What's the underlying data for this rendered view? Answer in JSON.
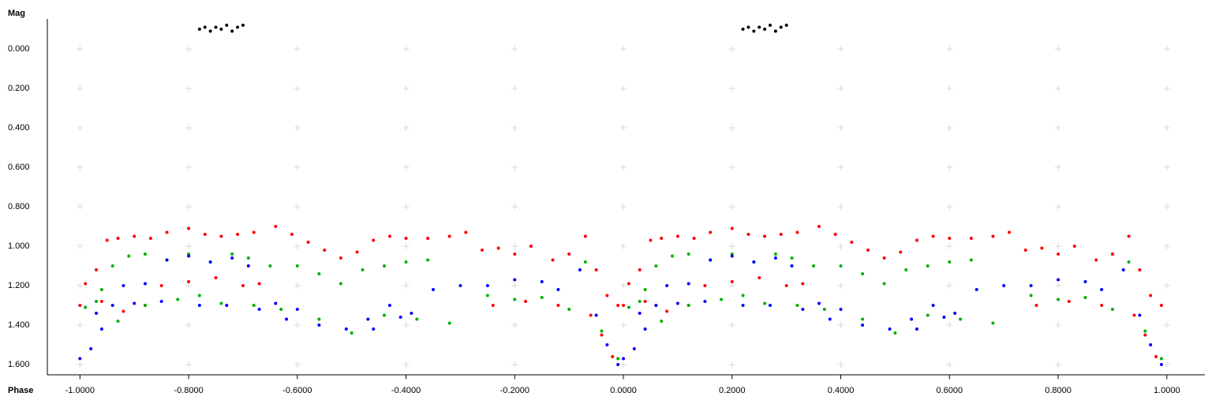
{
  "chart_data": {
    "type": "scatter",
    "y_label": "Mag",
    "x_label": "Phase",
    "xlim": [
      -1.06,
      1.07
    ],
    "ylim": [
      -0.15,
      1.65
    ],
    "y_inverted": true,
    "grid": true,
    "xticks": [
      {
        "value": -1,
        "label": "-1.0000"
      },
      {
        "value": -0.8,
        "label": "-0.8000"
      },
      {
        "value": -0.6,
        "label": "-0.6000"
      },
      {
        "value": -0.4,
        "label": "-0.4000"
      },
      {
        "value": -0.2,
        "label": "-0.2000"
      },
      {
        "value": 0,
        "label": "0.0000"
      },
      {
        "value": 0.2,
        "label": "0.2000"
      },
      {
        "value": 0.4,
        "label": "0.4000"
      },
      {
        "value": 0.6,
        "label": "0.6000"
      },
      {
        "value": 0.8,
        "label": "0.8000"
      },
      {
        "value": 1,
        "label": "1.0000"
      }
    ],
    "yticks": [
      {
        "value": 0,
        "label": "0.000"
      },
      {
        "value": 0.2,
        "label": "0.200"
      },
      {
        "value": 0.4,
        "label": "0.400"
      },
      {
        "value": 0.6,
        "label": "0.600"
      },
      {
        "value": 0.8,
        "label": "0.800"
      },
      {
        "value": 1,
        "label": "1.000"
      },
      {
        "value": 1.2,
        "label": "1.200"
      },
      {
        "value": 1.4,
        "label": "1.400"
      },
      {
        "value": 1.6,
        "label": "1.600"
      }
    ],
    "series": [
      {
        "color": "#ff0000",
        "x": [
          -0.99,
          -0.97,
          -0.95,
          -0.93,
          -0.9,
          -0.87,
          -0.84,
          -0.8,
          -0.77,
          -0.74,
          -0.71,
          -0.68,
          -0.64,
          -0.61,
          -0.58,
          -0.55,
          -0.52,
          -0.49,
          -0.46,
          -0.43,
          -0.4,
          -0.36,
          -0.32,
          -0.29,
          -0.26,
          -0.23,
          -0.2,
          -0.17,
          -0.13,
          -0.1,
          -0.07,
          -0.05,
          -0.03,
          -0.01,
          -1.0,
          -0.96,
          -0.92,
          -0.88,
          -0.85,
          -0.8,
          -0.75,
          -0.7,
          -0.67,
          -0.24,
          -0.18,
          -0.12,
          -0.06,
          -0.04,
          -0.02,
          0.01,
          0.03,
          0.05,
          0.07,
          0.1,
          0.13,
          0.16,
          0.2,
          0.23,
          0.26,
          0.29,
          0.32,
          0.36,
          0.39,
          0.42,
          0.45,
          0.48,
          0.51,
          0.54,
          0.57,
          0.6,
          0.64,
          0.68,
          0.71,
          0.74,
          0.77,
          0.8,
          0.83,
          0.87,
          0.9,
          0.93,
          0.95,
          0.97,
          0.99,
          0.0,
          0.04,
          0.08,
          0.12,
          0.15,
          0.2,
          0.25,
          0.3,
          0.33,
          0.76,
          0.82,
          0.88,
          0.94,
          0.96,
          0.98
        ],
        "values": [
          1.19,
          1.12,
          0.97,
          0.96,
          0.95,
          0.96,
          0.93,
          0.91,
          0.94,
          0.95,
          0.94,
          0.93,
          0.9,
          0.94,
          0.98,
          1.02,
          1.06,
          1.03,
          0.97,
          0.95,
          0.96,
          0.96,
          0.95,
          0.93,
          1.02,
          1.01,
          1.04,
          1.0,
          1.07,
          1.04,
          0.95,
          1.12,
          1.25,
          1.3,
          1.3,
          1.28,
          1.33,
          1.3,
          1.2,
          1.18,
          1.16,
          1.2,
          1.19,
          1.3,
          1.28,
          1.3,
          1.35,
          1.45,
          1.56,
          1.19,
          1.12,
          0.97,
          0.96,
          0.95,
          0.96,
          0.93,
          0.91,
          0.94,
          0.95,
          0.94,
          0.93,
          0.9,
          0.94,
          0.98,
          1.02,
          1.06,
          1.03,
          0.97,
          0.95,
          0.96,
          0.96,
          0.95,
          0.93,
          1.02,
          1.01,
          1.04,
          1.0,
          1.07,
          1.04,
          0.95,
          1.12,
          1.25,
          1.3,
          1.3,
          1.28,
          1.33,
          1.3,
          1.2,
          1.18,
          1.16,
          1.2,
          1.19,
          1.3,
          1.28,
          1.3,
          1.35,
          1.45,
          1.56
        ]
      },
      {
        "color": "#00b000",
        "x": [
          -0.99,
          -0.97,
          -0.96,
          -0.94,
          -0.91,
          -0.88,
          -0.84,
          -0.8,
          -0.76,
          -0.72,
          -0.69,
          -0.65,
          -0.6,
          -0.56,
          -0.52,
          -0.48,
          -0.44,
          -0.4,
          -0.36,
          -0.25,
          -0.2,
          -0.15,
          -0.1,
          -0.07,
          -0.04,
          -0.01,
          -0.93,
          -0.88,
          -0.82,
          -0.78,
          -0.74,
          -0.68,
          -0.63,
          -0.56,
          -0.5,
          -0.44,
          -0.38,
          -0.32,
          0.01,
          0.03,
          0.04,
          0.06,
          0.09,
          0.12,
          0.16,
          0.2,
          0.24,
          0.28,
          0.31,
          0.35,
          0.4,
          0.44,
          0.48,
          0.52,
          0.56,
          0.6,
          0.64,
          0.75,
          0.8,
          0.85,
          0.9,
          0.93,
          0.96,
          0.99,
          0.07,
          0.12,
          0.18,
          0.22,
          0.26,
          0.32,
          0.37,
          0.44,
          0.5,
          0.56,
          0.62,
          0.68
        ],
        "values": [
          1.31,
          1.28,
          1.22,
          1.1,
          1.05,
          1.04,
          1.07,
          1.04,
          1.08,
          1.04,
          1.06,
          1.1,
          1.1,
          1.14,
          1.19,
          1.12,
          1.1,
          1.08,
          1.07,
          1.25,
          1.27,
          1.26,
          1.32,
          1.08,
          1.43,
          1.57,
          1.38,
          1.3,
          1.27,
          1.25,
          1.29,
          1.3,
          1.32,
          1.37,
          1.44,
          1.35,
          1.37,
          1.39,
          1.31,
          1.28,
          1.22,
          1.1,
          1.05,
          1.04,
          1.07,
          1.04,
          1.08,
          1.04,
          1.06,
          1.1,
          1.1,
          1.14,
          1.19,
          1.12,
          1.1,
          1.08,
          1.07,
          1.25,
          1.27,
          1.26,
          1.32,
          1.08,
          1.43,
          1.57,
          1.38,
          1.3,
          1.27,
          1.25,
          1.29,
          1.3,
          1.32,
          1.37,
          1.44,
          1.35,
          1.37,
          1.39
        ]
      },
      {
        "color": "#0000ff",
        "x": [
          -1.0,
          -0.98,
          -0.96,
          -0.94,
          -0.92,
          -0.88,
          -0.84,
          -0.8,
          -0.76,
          -0.72,
          -0.69,
          -0.64,
          -0.6,
          -0.56,
          -0.51,
          -0.47,
          -0.43,
          -0.39,
          -0.35,
          -0.3,
          -0.25,
          -0.2,
          -0.15,
          -0.12,
          -0.08,
          -0.05,
          -0.03,
          -0.01,
          -0.97,
          -0.9,
          -0.85,
          -0.78,
          -0.73,
          -0.67,
          -0.62,
          -0.46,
          -0.41,
          0.0,
          0.02,
          0.04,
          0.06,
          0.08,
          0.12,
          0.16,
          0.2,
          0.24,
          0.28,
          0.31,
          0.36,
          0.4,
          0.44,
          0.49,
          0.53,
          0.57,
          0.61,
          0.65,
          0.7,
          0.75,
          0.8,
          0.85,
          0.88,
          0.92,
          0.95,
          0.97,
          0.99,
          0.03,
          0.1,
          0.15,
          0.22,
          0.27,
          0.33,
          0.38,
          0.54,
          0.59
        ],
        "values": [
          1.57,
          1.52,
          1.42,
          1.3,
          1.2,
          1.19,
          1.07,
          1.05,
          1.08,
          1.06,
          1.1,
          1.29,
          1.32,
          1.4,
          1.42,
          1.37,
          1.3,
          1.34,
          1.22,
          1.2,
          1.2,
          1.17,
          1.18,
          1.22,
          1.12,
          1.35,
          1.5,
          1.6,
          1.34,
          1.29,
          1.28,
          1.3,
          1.3,
          1.32,
          1.37,
          1.42,
          1.36,
          1.57,
          1.52,
          1.42,
          1.3,
          1.2,
          1.19,
          1.07,
          1.05,
          1.08,
          1.06,
          1.1,
          1.29,
          1.32,
          1.4,
          1.42,
          1.37,
          1.3,
          1.34,
          1.22,
          1.2,
          1.2,
          1.17,
          1.18,
          1.22,
          1.12,
          1.35,
          1.5,
          1.6,
          1.34,
          1.29,
          1.28,
          1.3,
          1.3,
          1.32,
          1.37,
          1.42,
          1.36
        ]
      },
      {
        "color": "#000000",
        "x": [
          -0.78,
          -0.77,
          -0.76,
          -0.75,
          -0.74,
          -0.73,
          -0.72,
          -0.71,
          -0.7,
          0.22,
          0.23,
          0.24,
          0.25,
          0.26,
          0.27,
          0.28,
          0.29,
          0.3
        ],
        "values": [
          -0.1,
          -0.11,
          -0.09,
          -0.11,
          -0.1,
          -0.12,
          -0.09,
          -0.11,
          -0.12,
          -0.1,
          -0.11,
          -0.09,
          -0.11,
          -0.1,
          -0.12,
          -0.09,
          -0.11,
          -0.12
        ]
      }
    ]
  }
}
